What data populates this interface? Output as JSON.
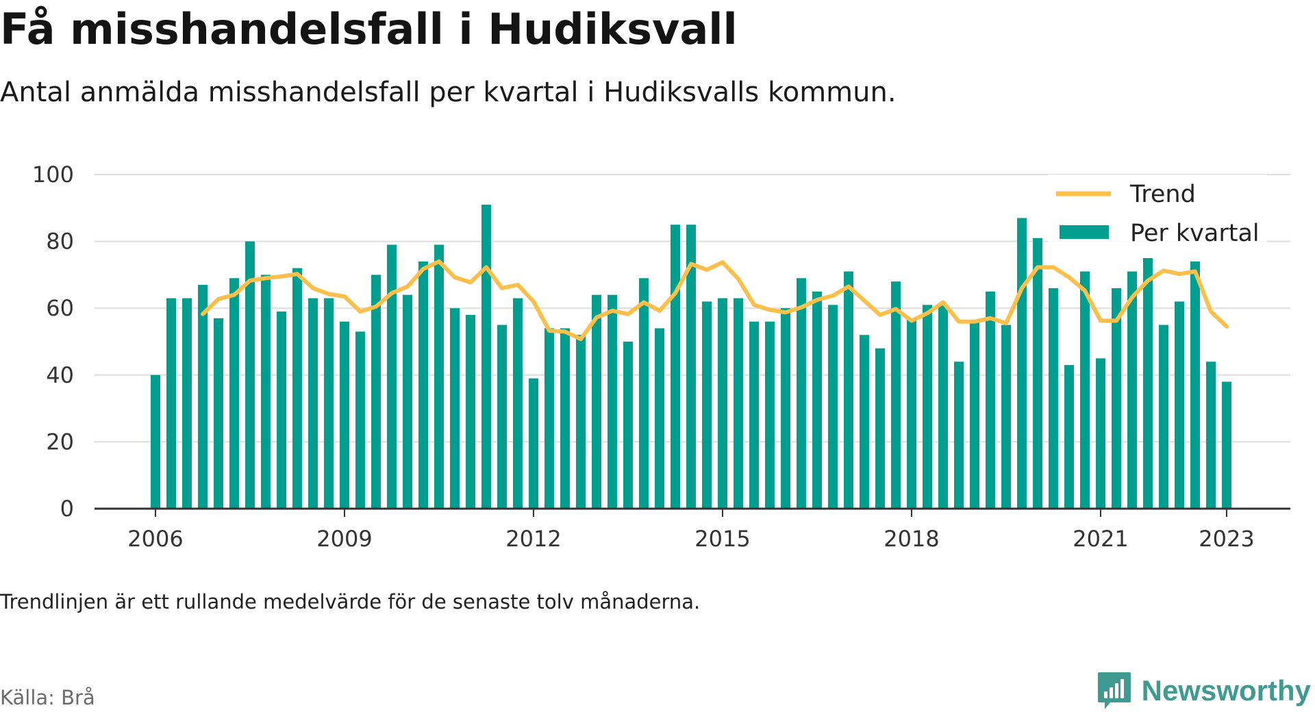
{
  "header": {
    "title": "Få misshandelsfall i Hudiksvall",
    "subtitle": "Antal anmälda misshandelsfall per kvartal i Hudiksvalls kommun."
  },
  "footer": {
    "note": "Trendlinjen är ett rullande medelvärde för de senaste tolv månaderna.",
    "source": "Källa: Brå",
    "brand": "Newsworthy"
  },
  "colors": {
    "bars": "#009e8e",
    "trend": "#fcbf49",
    "grid": "#dddddd",
    "axis": "#333333",
    "brand": "#3f9a91"
  },
  "chart_data": {
    "type": "bar",
    "title": "Få misshandelsfall i Hudiksvall",
    "subtitle": "Antal anmälda misshandelsfall per kvartal i Hudiksvalls kommun.",
    "xlabel": "",
    "ylabel": "",
    "ylim": [
      0,
      100
    ],
    "y_ticks": [
      0,
      20,
      40,
      60,
      80,
      100
    ],
    "x_ticks": [
      "2006",
      "2009",
      "2012",
      "2015",
      "2018",
      "2021",
      "2023"
    ],
    "grid": true,
    "legend_position": "top-right",
    "categories": [
      "2006 Q1",
      "2006 Q2",
      "2006 Q3",
      "2006 Q4",
      "2007 Q1",
      "2007 Q2",
      "2007 Q3",
      "2007 Q4",
      "2008 Q1",
      "2008 Q2",
      "2008 Q3",
      "2008 Q4",
      "2009 Q1",
      "2009 Q2",
      "2009 Q3",
      "2009 Q4",
      "2010 Q1",
      "2010 Q2",
      "2010 Q3",
      "2010 Q4",
      "2011 Q1",
      "2011 Q2",
      "2011 Q3",
      "2011 Q4",
      "2012 Q1",
      "2012 Q2",
      "2012 Q3",
      "2012 Q4",
      "2013 Q1",
      "2013 Q2",
      "2013 Q3",
      "2013 Q4",
      "2014 Q1",
      "2014 Q2",
      "2014 Q3",
      "2014 Q4",
      "2015 Q1",
      "2015 Q2",
      "2015 Q3",
      "2015 Q4",
      "2016 Q1",
      "2016 Q2",
      "2016 Q3",
      "2016 Q4",
      "2017 Q1",
      "2017 Q2",
      "2017 Q3",
      "2017 Q4",
      "2018 Q1",
      "2018 Q2",
      "2018 Q3",
      "2018 Q4",
      "2019 Q1",
      "2019 Q2",
      "2019 Q3",
      "2019 Q4",
      "2020 Q1",
      "2020 Q2",
      "2020 Q3",
      "2020 Q4",
      "2021 Q1",
      "2021 Q2",
      "2021 Q3",
      "2021 Q4",
      "2022 Q1",
      "2022 Q2",
      "2022 Q3",
      "2022 Q4",
      "2023 Q1"
    ],
    "series": [
      {
        "name": "Per kvartal",
        "kind": "bar",
        "values": [
          40,
          63,
          63,
          67,
          57,
          69,
          80,
          70,
          59,
          72,
          63,
          63,
          56,
          53,
          70,
          79,
          64,
          74,
          79,
          60,
          58,
          91,
          55,
          63,
          39,
          54,
          54,
          52,
          64,
          64,
          50,
          69,
          54,
          85,
          85,
          62,
          63,
          63,
          56,
          56,
          60,
          69,
          65,
          61,
          71,
          52,
          48,
          68,
          57,
          61,
          61,
          44,
          56,
          65,
          55,
          87,
          81,
          66,
          43,
          71,
          45,
          66,
          71,
          75,
          55,
          62,
          74,
          44,
          38
        ]
      },
      {
        "name": "Trend",
        "kind": "line",
        "values": [
          null,
          null,
          null,
          58.25,
          62.75,
          64,
          68.25,
          69,
          69.5,
          70.25,
          66,
          64.25,
          63.5,
          59,
          60.5,
          64.5,
          66.5,
          71.75,
          74,
          69.25,
          67.75,
          72.25,
          66,
          67,
          62,
          53.25,
          53,
          50.75,
          57.25,
          59.25,
          58.25,
          61.75,
          59.25,
          64.5,
          73.25,
          71.5,
          73.75,
          68.75,
          61,
          59.5,
          58.75,
          60.25,
          62.5,
          63.75,
          66.5,
          62.25,
          58,
          59.75,
          56.25,
          58.5,
          61.75,
          56,
          56,
          57,
          55.5,
          66,
          72.25,
          72.25,
          69.25,
          65.25,
          56.25,
          56.25,
          63.25,
          68.25,
          71.25,
          70.25,
          71,
          59,
          54.5
        ]
      }
    ]
  }
}
